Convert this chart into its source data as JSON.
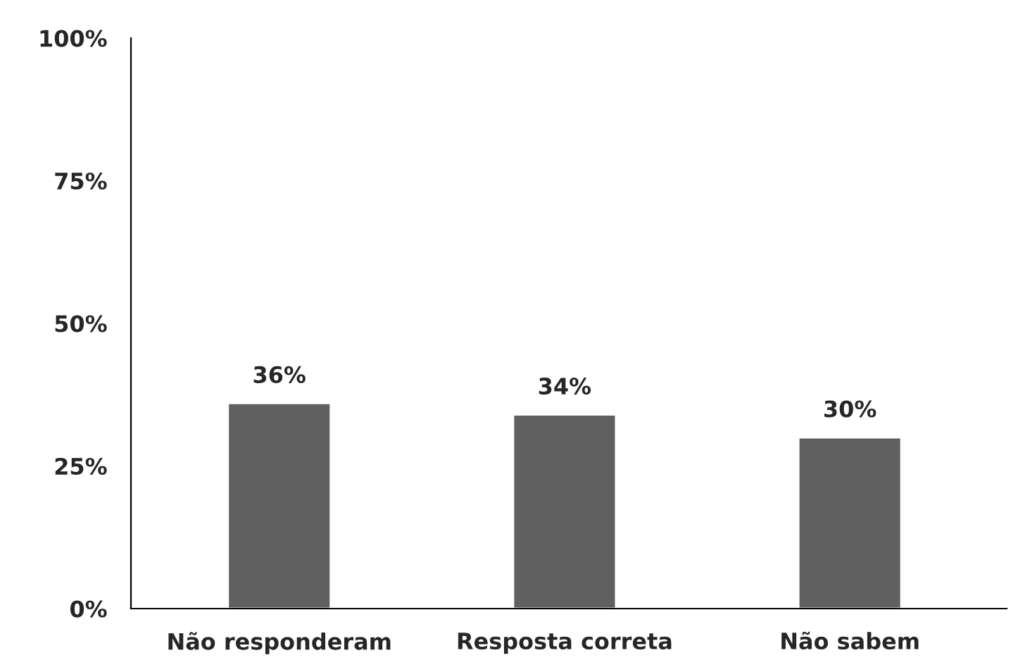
{
  "chart_data": {
    "type": "bar",
    "categories": [
      "Não responderam",
      "Resposta correta",
      "Não sabem"
    ],
    "values": [
      36,
      34,
      30
    ],
    "value_labels": [
      "36%",
      "34%",
      "30%"
    ],
    "color": "#606060",
    "ylim": [
      0,
      100
    ],
    "yticks": [
      {
        "value": 0,
        "label": "0%"
      },
      {
        "value": 25,
        "label": "25%"
      },
      {
        "value": 50,
        "label": "50%"
      },
      {
        "value": 75,
        "label": "75%"
      },
      {
        "value": 100,
        "label": "100%"
      }
    ],
    "grid": false,
    "legend": false
  }
}
